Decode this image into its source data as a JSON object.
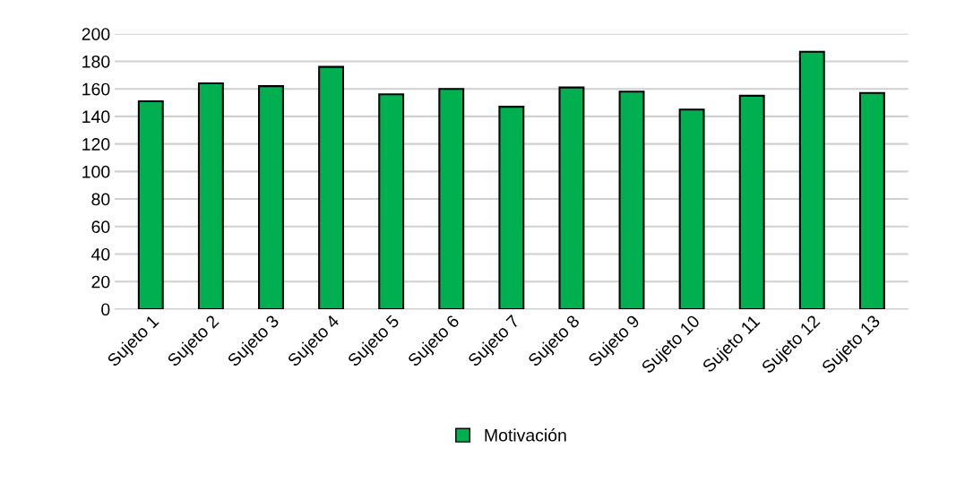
{
  "chart_data": {
    "type": "bar",
    "categories": [
      "Sujeto 1",
      "Sujeto 2",
      "Sujeto 3",
      "Sujeto 4",
      "Sujeto 5",
      "Sujeto 6",
      "Sujeto 7",
      "Sujeto 8",
      "Sujeto 9",
      "Sujeto 10",
      "Sujeto 11",
      "Sujeto 12",
      "Sujeto 13"
    ],
    "series": [
      {
        "name": "Motivación",
        "color": "#00b050",
        "values": [
          151,
          164,
          162,
          176,
          156,
          160,
          147,
          161,
          158,
          145,
          155,
          187,
          157
        ]
      }
    ],
    "ylim": [
      0,
      200
    ],
    "yticks": [
      0,
      20,
      40,
      60,
      80,
      100,
      120,
      140,
      160,
      180,
      200
    ],
    "grid": "y",
    "legend": "bottom"
  }
}
